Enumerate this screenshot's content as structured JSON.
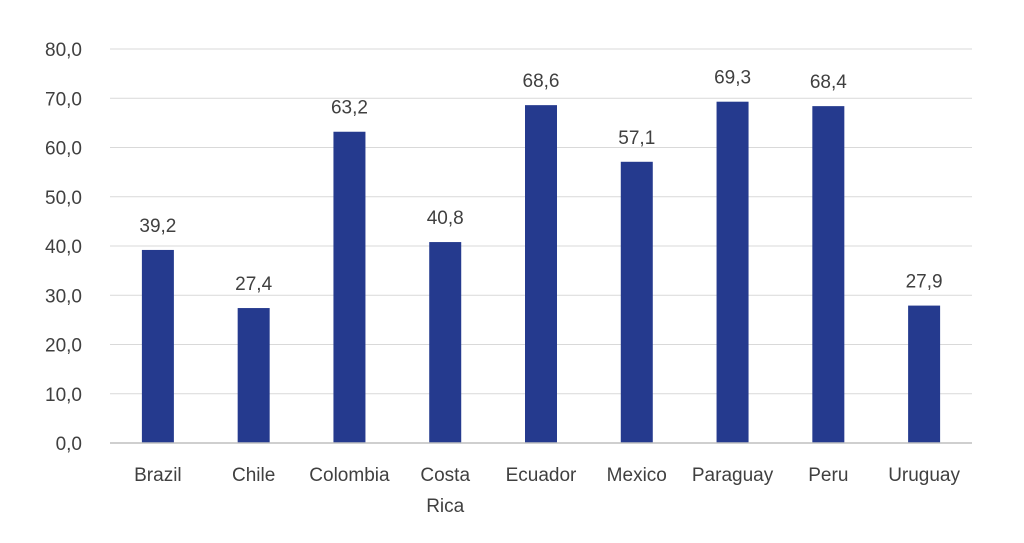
{
  "chart_data": {
    "type": "bar",
    "categories": [
      [
        "Brazil"
      ],
      [
        "Chile"
      ],
      [
        "Colombia"
      ],
      [
        "Costa",
        "Rica"
      ],
      [
        "Ecuador"
      ],
      [
        "Mexico"
      ],
      [
        "Paraguay"
      ],
      [
        "Peru"
      ],
      [
        "Uruguay"
      ]
    ],
    "values": [
      39.2,
      27.4,
      63.2,
      40.8,
      68.6,
      57.1,
      69.3,
      68.4,
      27.9
    ],
    "value_labels": [
      "39,2",
      "27,4",
      "63,2",
      "40,8",
      "68,6",
      "57,1",
      "69,3",
      "68,4",
      "27,9"
    ],
    "y_ticks": [
      0,
      10,
      20,
      30,
      40,
      50,
      60,
      70,
      80
    ],
    "y_tick_labels": [
      "0,0",
      "10,0",
      "20,0",
      "30,0",
      "40,0",
      "50,0",
      "60,0",
      "70,0",
      "80,0"
    ],
    "ylim": [
      0,
      80
    ],
    "grid": true,
    "legend": "none",
    "colors": {
      "bar": "#253a8e",
      "grid": "#d9d9d9",
      "text": "#404040"
    }
  }
}
